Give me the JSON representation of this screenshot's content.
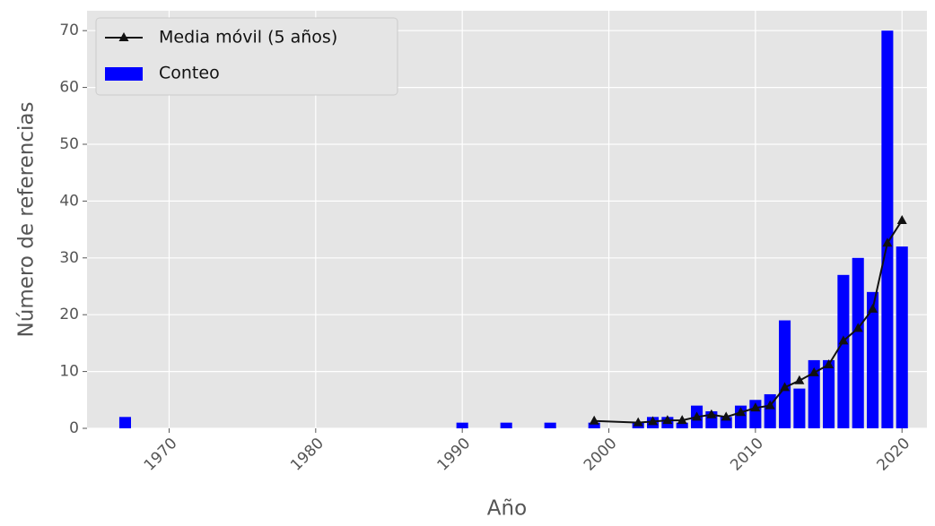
{
  "chart_data": {
    "type": "combo",
    "x_label": "Año",
    "y_label": "Número de referencias",
    "xlim": [
      1964.4,
      2021.7
    ],
    "xticks": [
      1970,
      1980,
      1990,
      2000,
      2010,
      2020
    ],
    "ylim": [
      0,
      73.5
    ],
    "yticks": [
      0,
      10,
      20,
      30,
      40,
      50,
      60,
      70
    ],
    "grid": true,
    "legend": "upper-left",
    "series": [
      {
        "name": "Media móvil (5 años)",
        "type": "line",
        "color": "#111111",
        "x": [
          1999,
          2002,
          2003,
          2004,
          2005,
          2006,
          2007,
          2008,
          2009,
          2010,
          2011,
          2012,
          2013,
          2014,
          2015,
          2016,
          2017,
          2018,
          2019,
          2020
        ],
        "values": [
          1.3,
          1.0,
          1.2,
          1.4,
          1.4,
          2.0,
          2.4,
          2.0,
          2.8,
          3.6,
          4.0,
          7.2,
          8.4,
          9.8,
          11.2,
          15.4,
          17.6,
          21.0,
          32.6,
          36.6
        ]
      },
      {
        "name": "Conteo",
        "type": "bar",
        "color": "#0000ff",
        "x": [
          1967,
          1990,
          1993,
          1996,
          1999,
          2002,
          2003,
          2004,
          2005,
          2006,
          2007,
          2008,
          2009,
          2010,
          2011,
          2012,
          2013,
          2014,
          2015,
          2016,
          2017,
          2018,
          2019,
          2020
        ],
        "values": [
          2,
          1,
          1,
          1,
          1,
          1,
          2,
          2,
          1,
          4,
          3,
          2,
          4,
          5,
          6,
          19,
          7,
          12,
          12,
          27,
          30,
          24,
          70,
          32
        ]
      }
    ]
  }
}
